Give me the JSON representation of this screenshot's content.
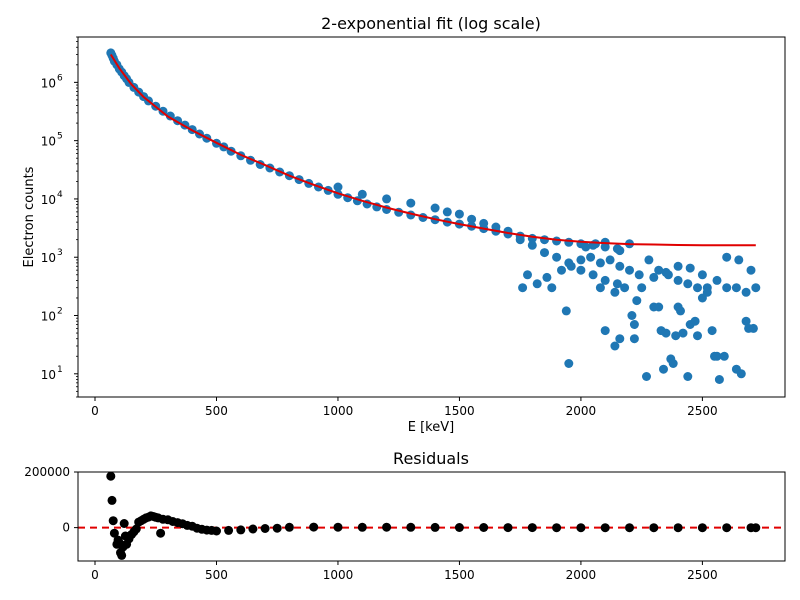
{
  "chart_data": [
    {
      "type": "scatter",
      "title": "2-exponential fit (log scale)",
      "xlabel": "E [keV]",
      "ylabel": "Electron counts",
      "xlim": [
        -70,
        2840
      ],
      "ylim": [
        4,
        6000000
      ],
      "yscale": "log",
      "xticks": [
        0,
        500,
        1000,
        1500,
        2000,
        2500
      ],
      "xtick_labels": [
        "0",
        "500",
        "1000",
        "1500",
        "2000",
        "2500"
      ],
      "yticks": [
        10,
        100,
        1000,
        10000,
        100000,
        1000000
      ],
      "ytick_labels": [
        {
          "base": "10",
          "exp": "1"
        },
        {
          "base": "10",
          "exp": "2"
        },
        {
          "base": "10",
          "exp": "3"
        },
        {
          "base": "10",
          "exp": "4"
        },
        {
          "base": "10",
          "exp": "5"
        },
        {
          "base": "10",
          "exp": "6"
        }
      ],
      "grid": false,
      "series": [
        {
          "kind": "scatter",
          "color": "#1f77b4",
          "points": [
            [
              65,
              3200000
            ],
            [
              70,
              2900000
            ],
            [
              75,
              2600000
            ],
            [
              80,
              2300000
            ],
            [
              90,
              2000000
            ],
            [
              100,
              1700000
            ],
            [
              110,
              1500000
            ],
            [
              120,
              1300000
            ],
            [
              130,
              1150000
            ],
            [
              140,
              1000000
            ],
            [
              160,
              820000
            ],
            [
              180,
              680000
            ],
            [
              200,
              570000
            ],
            [
              220,
              480000
            ],
            [
              250,
              390000
            ],
            [
              280,
              320000
            ],
            [
              310,
              265000
            ],
            [
              340,
              220000
            ],
            [
              370,
              185000
            ],
            [
              400,
              155000
            ],
            [
              430,
              130000
            ],
            [
              460,
              110000
            ],
            [
              500,
              90000
            ],
            [
              530,
              78000
            ],
            [
              560,
              66000
            ],
            [
              600,
              55000
            ],
            [
              640,
              46000
            ],
            [
              680,
              39000
            ],
            [
              720,
              34000
            ],
            [
              760,
              29000
            ],
            [
              800,
              25000
            ],
            [
              840,
              21500
            ],
            [
              880,
              18500
            ],
            [
              920,
              16000
            ],
            [
              960,
              14000
            ],
            [
              1000,
              12000
            ],
            [
              1040,
              10500
            ],
            [
              1080,
              9300
            ],
            [
              1120,
              8200
            ],
            [
              1160,
              7300
            ],
            [
              1200,
              6600
            ],
            [
              1250,
              5900
            ],
            [
              1300,
              5300
            ],
            [
              1350,
              4800
            ],
            [
              1400,
              4400
            ],
            [
              1450,
              4000
            ],
            [
              1500,
              3700
            ],
            [
              1550,
              3400
            ],
            [
              1600,
              3100
            ],
            [
              1650,
              2800
            ],
            [
              1700,
              2500
            ],
            [
              1750,
              2300
            ],
            [
              1800,
              2100
            ],
            [
              1850,
              2000
            ],
            [
              1900,
              1900
            ],
            [
              1950,
              1800
            ],
            [
              2000,
              1700
            ],
            [
              2050,
              1600
            ],
            [
              2100,
              1500
            ],
            [
              2150,
              1400
            ],
            [
              1000,
              16000
            ],
            [
              1100,
              12000
            ],
            [
              1200,
              10000
            ],
            [
              1300,
              8500
            ],
            [
              1400,
              7000
            ],
            [
              1450,
              6000
            ],
            [
              1500,
              5500
            ],
            [
              1550,
              4500
            ],
            [
              1600,
              3800
            ],
            [
              1650,
              3300
            ],
            [
              1700,
              2800
            ],
            [
              1750,
              2000
            ],
            [
              1800,
              1600
            ],
            [
              1850,
              1200
            ],
            [
              1900,
              1000
            ],
            [
              1950,
              800
            ],
            [
              2000,
              600
            ],
            [
              2050,
              500
            ],
            [
              2100,
              400
            ],
            [
              2150,
              350
            ],
            [
              1760,
              300
            ],
            [
              1780,
              500
            ],
            [
              1820,
              350
            ],
            [
              1860,
              450
            ],
            [
              1880,
              300
            ],
            [
              1920,
              600
            ],
            [
              1960,
              700
            ],
            [
              2000,
              900
            ],
            [
              2040,
              1000
            ],
            [
              2080,
              800
            ],
            [
              2120,
              900
            ],
            [
              2160,
              700
            ],
            [
              2200,
              600
            ],
            [
              2240,
              500
            ],
            [
              2280,
              900
            ],
            [
              2320,
              600
            ],
            [
              2360,
              500
            ],
            [
              2400,
              400
            ],
            [
              2440,
              350
            ],
            [
              2480,
              300
            ],
            [
              2520,
              300
            ],
            [
              2560,
              400
            ],
            [
              2600,
              300
            ],
            [
              2640,
              300
            ],
            [
              2680,
              250
            ],
            [
              2720,
              300
            ],
            [
              2700,
              600
            ],
            [
              2650,
              900
            ],
            [
              2600,
              1000
            ],
            [
              2500,
              500
            ],
            [
              2450,
              650
            ],
            [
              2400,
              700
            ],
            [
              2350,
              550
            ],
            [
              2300,
              450
            ],
            [
              2250,
              300
            ],
            [
              2200,
              1700
            ],
            [
              2160,
              1300
            ],
            [
              2100,
              1800
            ],
            [
              2060,
              1700
            ],
            [
              2020,
              1500
            ],
            [
              1940,
              120
            ],
            [
              1950,
              15
            ],
            [
              2100,
              55
            ],
            [
              2140,
              30
            ],
            [
              2160,
              40
            ],
            [
              2210,
              100
            ],
            [
              2220,
              70
            ],
            [
              2220,
              40
            ],
            [
              2300,
              140
            ],
            [
              2320,
              140
            ],
            [
              2330,
              55
            ],
            [
              2350,
              50
            ],
            [
              2370,
              18
            ],
            [
              2380,
              15
            ],
            [
              2390,
              45
            ],
            [
              2400,
              140
            ],
            [
              2410,
              120
            ],
            [
              2420,
              50
            ],
            [
              2440,
              9
            ],
            [
              2450,
              70
            ],
            [
              2470,
              80
            ],
            [
              2480,
              45
            ],
            [
              2500,
              200
            ],
            [
              2520,
              250
            ],
            [
              2540,
              55
            ],
            [
              2550,
              20
            ],
            [
              2560,
              20
            ],
            [
              2570,
              8
            ],
            [
              2590,
              20
            ],
            [
              2640,
              12
            ],
            [
              2660,
              10
            ],
            [
              2680,
              80
            ],
            [
              2690,
              60
            ],
            [
              2710,
              60
            ],
            [
              2270,
              9
            ],
            [
              2340,
              12
            ],
            [
              2230,
              180
            ],
            [
              2180,
              300
            ],
            [
              2140,
              250
            ],
            [
              2080,
              300
            ]
          ]
        },
        {
          "kind": "line",
          "color": "#e00000",
          "points": [
            [
              65,
              3000000
            ],
            [
              100,
              1750000
            ],
            [
              150,
              920000
            ],
            [
              200,
              560000
            ],
            [
              300,
              260000
            ],
            [
              400,
              150000
            ],
            [
              500,
              92000
            ],
            [
              600,
              57000
            ],
            [
              700,
              38000
            ],
            [
              800,
              25000
            ],
            [
              900,
              17500
            ],
            [
              1000,
              12500
            ],
            [
              1100,
              9300
            ],
            [
              1200,
              7100
            ],
            [
              1300,
              5600
            ],
            [
              1400,
              4500
            ],
            [
              1500,
              3700
            ],
            [
              1600,
              3100
            ],
            [
              1700,
              2600
            ],
            [
              1800,
              2250
            ],
            [
              1900,
              2000
            ],
            [
              2000,
              1850
            ],
            [
              2100,
              1750
            ],
            [
              2200,
              1680
            ],
            [
              2300,
              1650
            ],
            [
              2400,
              1620
            ],
            [
              2500,
              1610
            ],
            [
              2600,
              1600
            ],
            [
              2720,
              1600
            ]
          ]
        }
      ]
    },
    {
      "type": "scatter",
      "title": "Residuals",
      "xlim": [
        -70,
        2840
      ],
      "ylim": [
        -120000,
        200000
      ],
      "xticks": [
        0,
        500,
        1000,
        1500,
        2000,
        2500
      ],
      "xtick_labels": [
        "0",
        "500",
        "1000",
        "1500",
        "2000",
        "2500"
      ],
      "yticks": [
        0,
        200000
      ],
      "ytick_labels": [
        "0",
        "200000"
      ],
      "grid": false,
      "reference_line": {
        "y": 0,
        "color": "#e00000",
        "style": "dashed"
      },
      "series": [
        {
          "kind": "scatter",
          "color": "#000000",
          "points": [
            [
              65,
              185000
            ],
            [
              70,
              98000
            ],
            [
              75,
              25000
            ],
            [
              80,
              -20000
            ],
            [
              90,
              -60000
            ],
            [
              95,
              -45000
            ],
            [
              100,
              -55000
            ],
            [
              105,
              -90000
            ],
            [
              110,
              -100000
            ],
            [
              115,
              -70000
            ],
            [
              120,
              15000
            ],
            [
              125,
              -30000
            ],
            [
              130,
              -60000
            ],
            [
              140,
              -40000
            ],
            [
              150,
              -25000
            ],
            [
              160,
              -15000
            ],
            [
              170,
              -5000
            ],
            [
              180,
              20000
            ],
            [
              190,
              25000
            ],
            [
              200,
              30000
            ],
            [
              210,
              35000
            ],
            [
              220,
              38000
            ],
            [
              230,
              42000
            ],
            [
              240,
              40000
            ],
            [
              250,
              37000
            ],
            [
              260,
              35000
            ],
            [
              270,
              -20000
            ],
            [
              280,
              30000
            ],
            [
              300,
              28000
            ],
            [
              320,
              22000
            ],
            [
              340,
              18000
            ],
            [
              360,
              14000
            ],
            [
              380,
              8000
            ],
            [
              400,
              5000
            ],
            [
              420,
              -2000
            ],
            [
              440,
              -6000
            ],
            [
              460,
              -9000
            ],
            [
              480,
              -10000
            ],
            [
              500,
              -12000
            ],
            [
              550,
              -10000
            ],
            [
              600,
              -8000
            ],
            [
              650,
              -5000
            ],
            [
              700,
              -3000
            ],
            [
              750,
              -2000
            ],
            [
              800,
              1000
            ],
            [
              900,
              2000
            ],
            [
              1000,
              1500
            ],
            [
              1100,
              1000
            ],
            [
              1200,
              1500
            ],
            [
              1300,
              1000
            ],
            [
              1400,
              800
            ],
            [
              1500,
              500
            ],
            [
              1600,
              300
            ],
            [
              1700,
              200
            ],
            [
              1800,
              100
            ],
            [
              1900,
              -100
            ],
            [
              2000,
              -200
            ],
            [
              2100,
              -300
            ],
            [
              2200,
              -200
            ],
            [
              2300,
              -300
            ],
            [
              2400,
              -200
            ],
            [
              2500,
              -300
            ],
            [
              2600,
              -200
            ],
            [
              2700,
              -300
            ],
            [
              2720,
              -300
            ]
          ]
        }
      ]
    }
  ]
}
